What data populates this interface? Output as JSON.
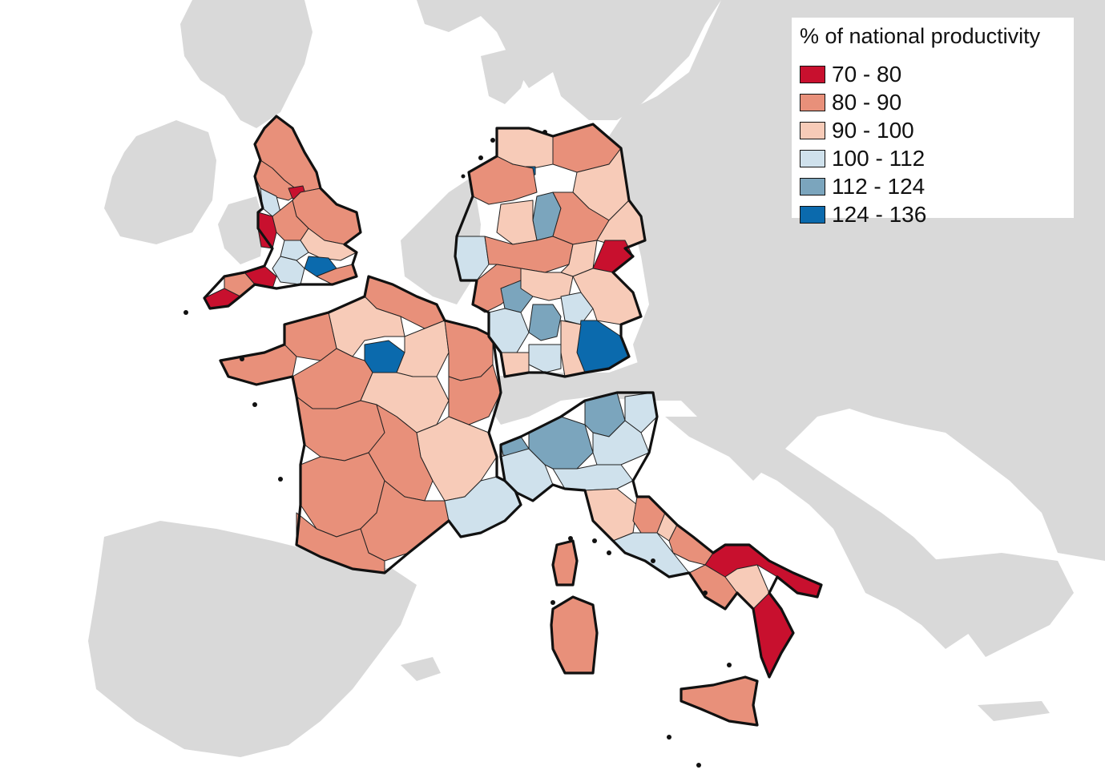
{
  "legend": {
    "title": "% of national productivity",
    "items": [
      {
        "label": "70 - 80",
        "color": "#c8102e"
      },
      {
        "label": "80 - 90",
        "color": "#e8907a"
      },
      {
        "label": "90 - 100",
        "color": "#f7cbb8"
      },
      {
        "label": "100 - 112",
        "color": "#cfe1ec"
      },
      {
        "label": "112 - 124",
        "color": "#7ba5bd"
      },
      {
        "label": "124 - 136",
        "color": "#0b6aad"
      }
    ]
  },
  "colors": {
    "background_land": "#d9d9d9",
    "sea": "#ffffff",
    "border": "#111111"
  },
  "countries": [
    {
      "name": "England"
    },
    {
      "name": "France"
    },
    {
      "name": "Germany"
    },
    {
      "name": "Italy"
    }
  ]
}
